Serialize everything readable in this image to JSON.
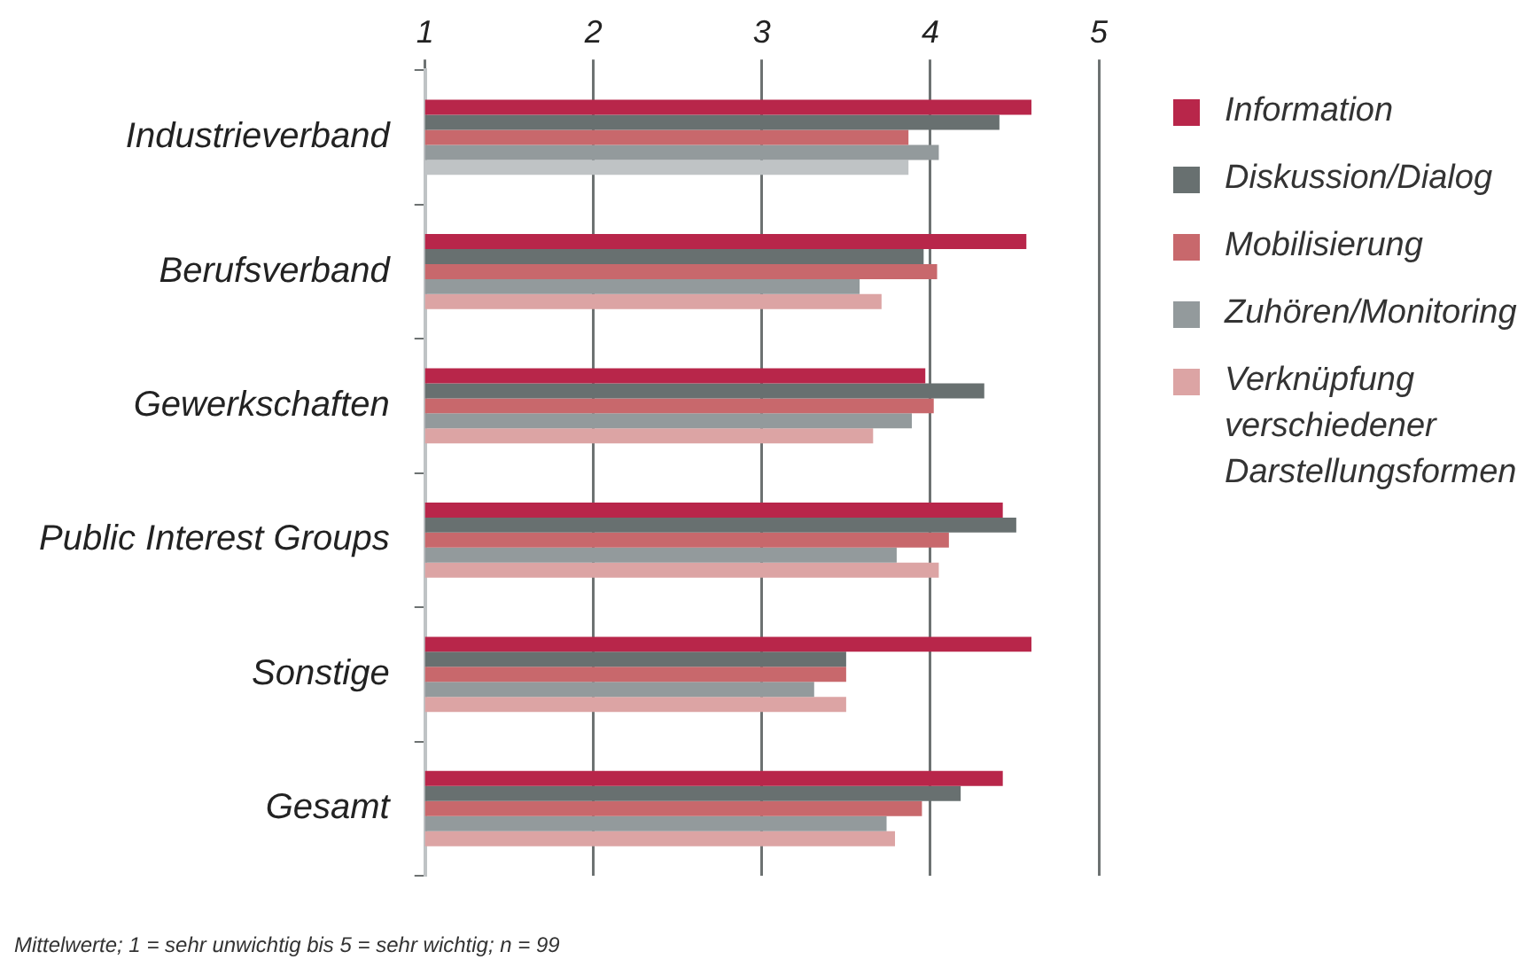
{
  "chart_data": {
    "type": "bar",
    "orientation": "horizontal",
    "categories": [
      "Industrieverband",
      "Berufsverband",
      "Gewerkschaften",
      "Public Interest Groups",
      "Sonstige",
      "Gesamt"
    ],
    "series": [
      {
        "name": "Information",
        "color": "#b8264a",
        "values": [
          4.6,
          4.57,
          3.97,
          4.43,
          4.6,
          4.43
        ]
      },
      {
        "name": "Diskussion/Dialog",
        "color": "#687070",
        "values": [
          4.41,
          3.96,
          4.32,
          4.51,
          3.5,
          4.18
        ]
      },
      {
        "name": "Mobilisierung",
        "color": "#c8686c",
        "values": [
          3.87,
          4.04,
          4.02,
          4.11,
          3.5,
          3.95
        ]
      },
      {
        "name": "Zuhören/Monitoring",
        "color": "#939a9c",
        "values": [
          4.05,
          3.58,
          3.89,
          3.8,
          3.31,
          3.74
        ]
      },
      {
        "name": "Verknüpfung verschiedener Darstellungsformen",
        "color": "#dca4a4",
        "colors": [
          "#bfc3c5",
          "#dca4a4",
          "#dca4a4",
          "#dca4a4",
          "#dca4a4",
          "#dca4a4"
        ],
        "values": [
          3.87,
          3.71,
          3.66,
          4.05,
          3.5,
          3.79
        ]
      }
    ],
    "xlim": [
      1,
      5
    ],
    "xticks": [
      1,
      2,
      3,
      4,
      5
    ],
    "grid": "x",
    "legend": "right",
    "annotations": [
      "Mittelwerte; 1 = sehr unwichtig bis 5 = sehr wichtig; n = 99"
    ]
  }
}
